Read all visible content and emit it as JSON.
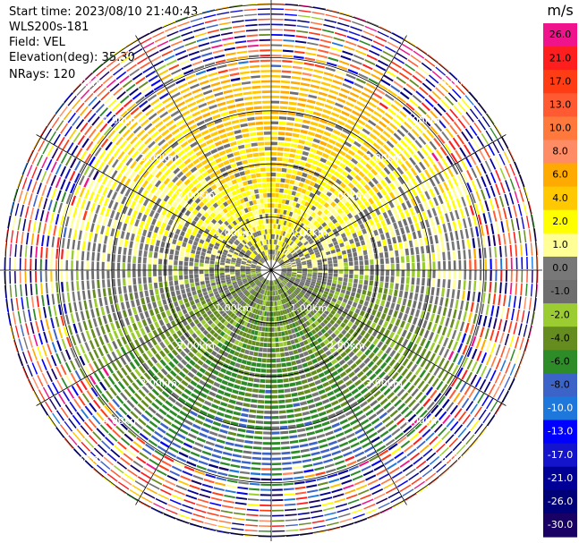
{
  "header": {
    "start_time": "Start time: 2023/08/10 21:40:43",
    "instrument": "WLS200s-181",
    "field": "Field: VEL",
    "elevation": "Elevation(deg): 35.30",
    "nrays": "NRays: 120"
  },
  "chart_data": {
    "type": "heatmap",
    "projection": "polar-ppi",
    "title": "",
    "field": "VEL",
    "n_rays": 120,
    "range_rings_km": [
      1.0,
      2.0,
      3.0,
      4.0,
      5.0
    ],
    "ring_labels": [
      "1.00km",
      "2.00km",
      "3.00km",
      "4.00km",
      "5.00km"
    ],
    "max_range_km": 5.1,
    "colorbar": {
      "unit": "m/s",
      "ticks": [
        "26.0",
        "21.0",
        "17.0",
        "13.0",
        "10.0",
        "8.0",
        "6.0",
        "4.0",
        "2.0",
        "1.0",
        "0.0",
        "-1.0",
        "-2.0",
        "-4.0",
        "-6.0",
        "-8.0",
        "-10.0",
        "-13.0",
        "-17.0",
        "-21.0",
        "-26.0",
        "-30.0"
      ],
      "colors": [
        "#f0148c",
        "#ff1e1e",
        "#ff3c14",
        "#ff5a32",
        "#ff783c",
        "#ff8c64",
        "#ffaa00",
        "#ffc800",
        "#ffff00",
        "#ffff96",
        "#787878",
        "#6e6e6e",
        "#9bcd32",
        "#648c1e",
        "#2d8c28",
        "#3c64c8",
        "#1e78dc",
        "#0000ff",
        "#1414cd",
        "#000096",
        "#000078",
        "#190064"
      ]
    },
    "velocity_pattern": {
      "approaching_sector": "north",
      "receding_sector": "south",
      "near_range_value": 1.5,
      "far_range_noise": true
    }
  }
}
